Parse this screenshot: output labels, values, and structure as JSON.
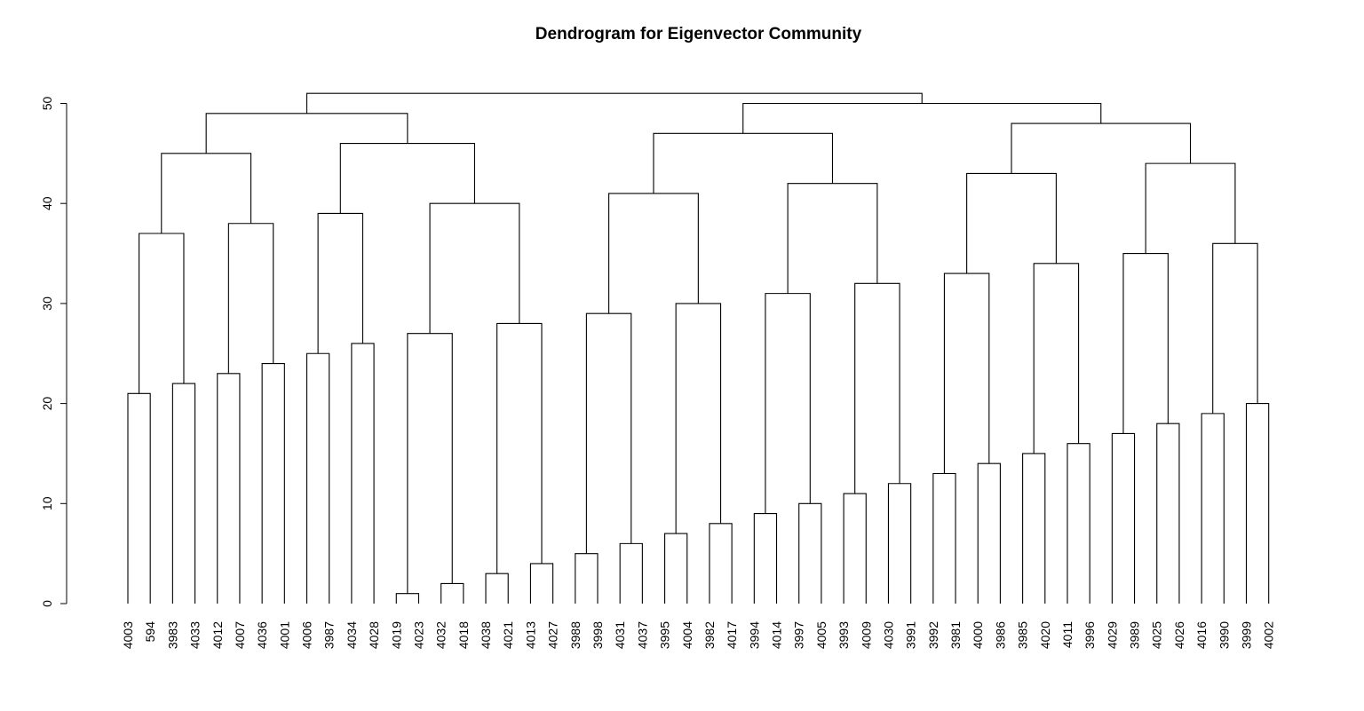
{
  "chart_data": {
    "type": "dendrogram",
    "title": "Dendrogram for Eigenvector Community",
    "xlabel": "",
    "ylabel": "",
    "ylim": [
      0,
      50
    ],
    "yticks": [
      0,
      10,
      20,
      30,
      40,
      50
    ],
    "leaves": [
      "4003",
      "594",
      "3983",
      "4033",
      "4012",
      "4007",
      "4036",
      "4001",
      "4006",
      "3987",
      "4034",
      "4028",
      "4019",
      "4023",
      "4032",
      "4018",
      "4038",
      "4021",
      "4013",
      "4027",
      "3988",
      "3998",
      "4031",
      "4037",
      "3995",
      "4004",
      "3982",
      "4017",
      "3994",
      "4014",
      "3997",
      "4005",
      "3993",
      "4009",
      "4030",
      "3991",
      "3992",
      "3981",
      "4000",
      "3986",
      "3985",
      "4020",
      "4011",
      "3996",
      "4029",
      "3989",
      "4025",
      "4026",
      "4016",
      "3990",
      "3999",
      "4002"
    ],
    "merges": [
      {
        "a": "L0",
        "b": "L1",
        "height": 21
      },
      {
        "a": "L2",
        "b": "L3",
        "height": 22
      },
      {
        "a": "L4",
        "b": "L5",
        "height": 23
      },
      {
        "a": "L6",
        "b": "L7",
        "height": 24
      },
      {
        "a": "L8",
        "b": "L9",
        "height": 25
      },
      {
        "a": "L10",
        "b": "L11",
        "height": 26
      },
      {
        "a": "L12",
        "b": "L13",
        "height": 1
      },
      {
        "a": "L14",
        "b": "L15",
        "height": 2
      },
      {
        "a": "L16",
        "b": "L17",
        "height": 3
      },
      {
        "a": "L18",
        "b": "L19",
        "height": 4
      },
      {
        "a": "L20",
        "b": "L21",
        "height": 5
      },
      {
        "a": "L22",
        "b": "L23",
        "height": 6
      },
      {
        "a": "L24",
        "b": "L25",
        "height": 7
      },
      {
        "a": "L26",
        "b": "L27",
        "height": 8
      },
      {
        "a": "L28",
        "b": "L29",
        "height": 9
      },
      {
        "a": "L30",
        "b": "L31",
        "height": 10
      },
      {
        "a": "L32",
        "b": "L33",
        "height": 11
      },
      {
        "a": "L34",
        "b": "L35",
        "height": 12
      },
      {
        "a": "L36",
        "b": "L37",
        "height": 13
      },
      {
        "a": "L38",
        "b": "L39",
        "height": 14
      },
      {
        "a": "L40",
        "b": "L41",
        "height": 15
      },
      {
        "a": "L42",
        "b": "L43",
        "height": 16
      },
      {
        "a": "L44",
        "b": "L45",
        "height": 17
      },
      {
        "a": "L46",
        "b": "L47",
        "height": 18
      },
      {
        "a": "L48",
        "b": "L49",
        "height": 19
      },
      {
        "a": "L50",
        "b": "L51",
        "height": 20
      },
      {
        "a": "M6",
        "b": "M7",
        "height": 27
      },
      {
        "a": "M8",
        "b": "M9",
        "height": 28
      },
      {
        "a": "M10",
        "b": "M11",
        "height": 29
      },
      {
        "a": "M12",
        "b": "M13",
        "height": 30
      },
      {
        "a": "M14",
        "b": "M15",
        "height": 31
      },
      {
        "a": "M16",
        "b": "M17",
        "height": 32
      },
      {
        "a": "M18",
        "b": "M19",
        "height": 33
      },
      {
        "a": "M20",
        "b": "M21",
        "height": 34
      },
      {
        "a": "M22",
        "b": "M23",
        "height": 35
      },
      {
        "a": "M24",
        "b": "M25",
        "height": 36
      },
      {
        "a": "M0",
        "b": "M1",
        "height": 37
      },
      {
        "a": "M2",
        "b": "M3",
        "height": 38
      },
      {
        "a": "M4",
        "b": "M5",
        "height": 39
      },
      {
        "a": "M26",
        "b": "M27",
        "height": 40
      },
      {
        "a": "M28",
        "b": "M29",
        "height": 41
      },
      {
        "a": "M30",
        "b": "M31",
        "height": 42
      },
      {
        "a": "M32",
        "b": "M33",
        "height": 43
      },
      {
        "a": "M34",
        "b": "M35",
        "height": 44
      },
      {
        "a": "M36",
        "b": "M37",
        "height": 45
      },
      {
        "a": "M38",
        "b": "M39",
        "height": 46
      },
      {
        "a": "M40",
        "b": "M41",
        "height": 47
      },
      {
        "a": "M42",
        "b": "M43",
        "height": 48
      },
      {
        "a": "M44",
        "b": "M45",
        "height": 49
      },
      {
        "a": "M46",
        "b": "M47",
        "height": 50
      },
      {
        "a": "M48",
        "b": "M49",
        "height": 51
      }
    ]
  }
}
